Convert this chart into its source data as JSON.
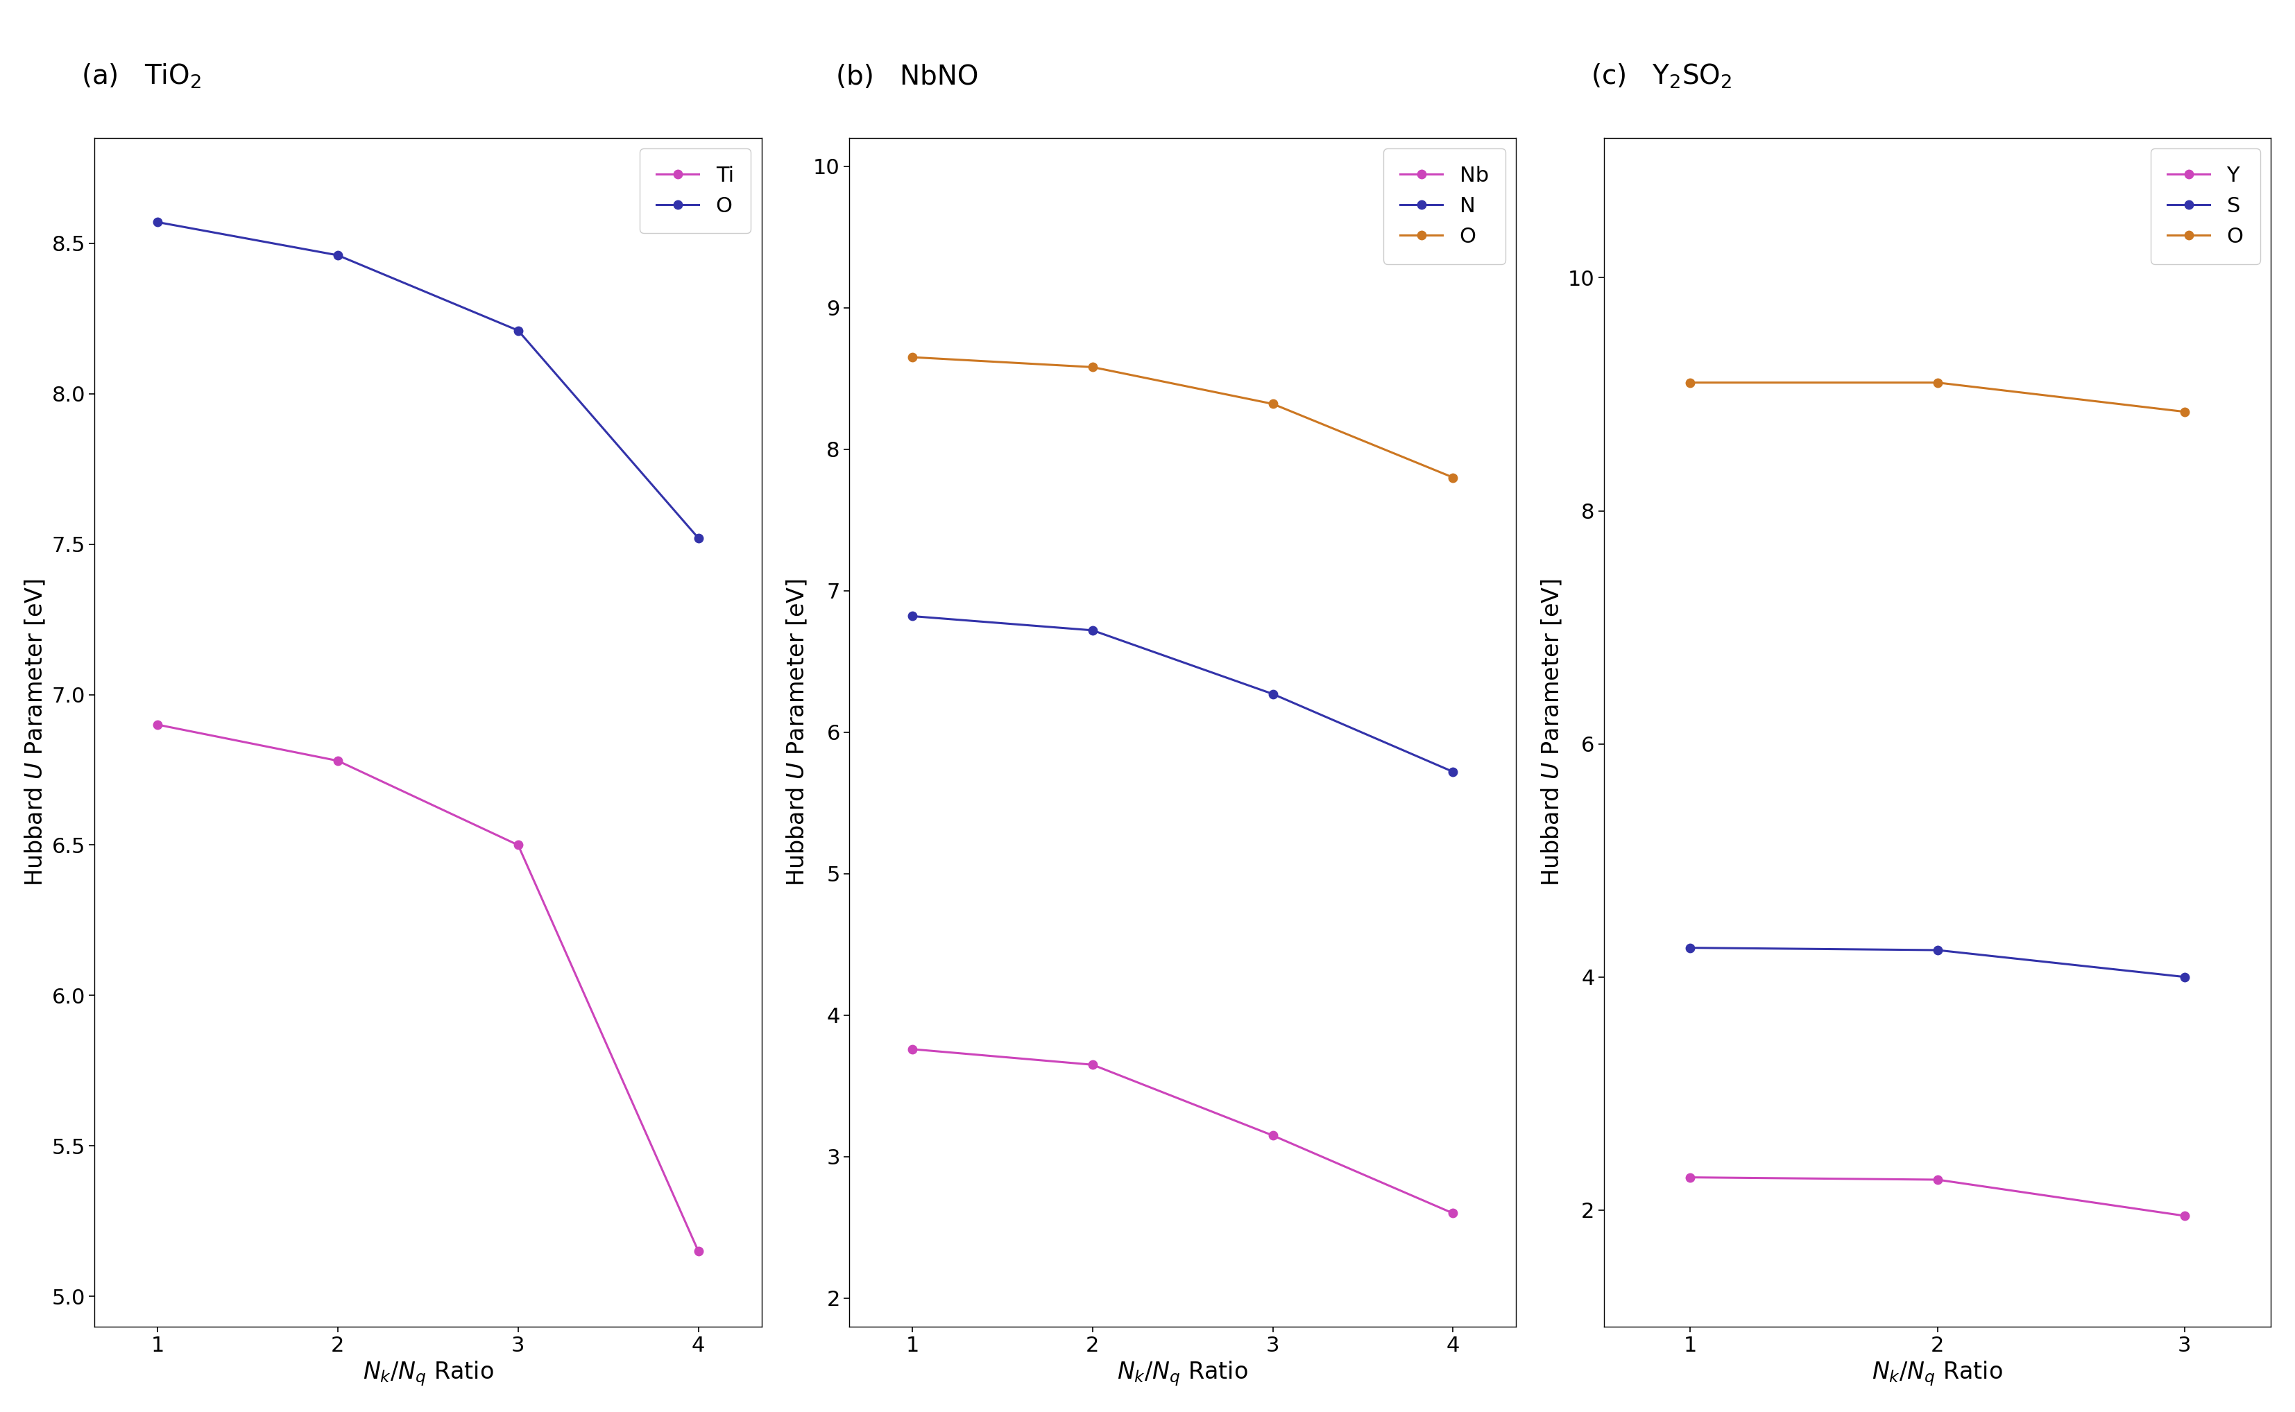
{
  "panels": [
    {
      "label": "(a)",
      "title": "TiO$_2$",
      "x": [
        1,
        2,
        3,
        4
      ],
      "series": [
        {
          "name": "Ti",
          "color": "#CC44BB",
          "values": [
            6.9,
            6.78,
            6.5,
            5.15
          ]
        },
        {
          "name": "O",
          "color": "#3333AA",
          "values": [
            8.57,
            8.46,
            8.21,
            7.52
          ]
        }
      ],
      "ylim": [
        4.9,
        8.85
      ],
      "yticks": [
        5.0,
        5.5,
        6.0,
        6.5,
        7.0,
        7.5,
        8.0,
        8.5
      ],
      "xticks": [
        1,
        2,
        3,
        4
      ]
    },
    {
      "label": "(b)",
      "title": "NbNO",
      "x": [
        1,
        2,
        3,
        4
      ],
      "series": [
        {
          "name": "Nb",
          "color": "#CC44BB",
          "values": [
            3.76,
            3.65,
            3.15,
            2.6
          ]
        },
        {
          "name": "N",
          "color": "#3333AA",
          "values": [
            6.82,
            6.72,
            6.27,
            5.72
          ]
        },
        {
          "name": "O",
          "color": "#CC7722",
          "values": [
            8.65,
            8.58,
            8.32,
            7.8
          ]
        }
      ],
      "ylim": [
        1.8,
        10.2
      ],
      "yticks": [
        2,
        3,
        4,
        5,
        6,
        7,
        8,
        9,
        10
      ],
      "xticks": [
        1,
        2,
        3,
        4
      ]
    },
    {
      "label": "(c)",
      "title": "Y$_2$SO$_2$",
      "x": [
        1,
        2,
        3
      ],
      "series": [
        {
          "name": "Y",
          "color": "#CC44BB",
          "values": [
            2.28,
            2.26,
            1.95
          ]
        },
        {
          "name": "S",
          "color": "#3333AA",
          "values": [
            4.25,
            4.23,
            4.0
          ]
        },
        {
          "name": "O",
          "color": "#CC7722",
          "values": [
            9.1,
            9.1,
            8.85
          ]
        }
      ],
      "ylim": [
        1.0,
        11.2
      ],
      "yticks": [
        2,
        4,
        6,
        8,
        10
      ],
      "xticks": [
        1,
        2,
        3
      ]
    }
  ],
  "ylabel": "Hubbard $U$ Parameter [eV]",
  "xlabel_math": "$N_k$/$N_q$ Ratio",
  "background_color": "#ffffff",
  "fontsize_title": 28,
  "fontsize_tick": 22,
  "fontsize_legend": 22,
  "fontsize_axis": 24,
  "linewidth": 2.2,
  "markersize": 9
}
